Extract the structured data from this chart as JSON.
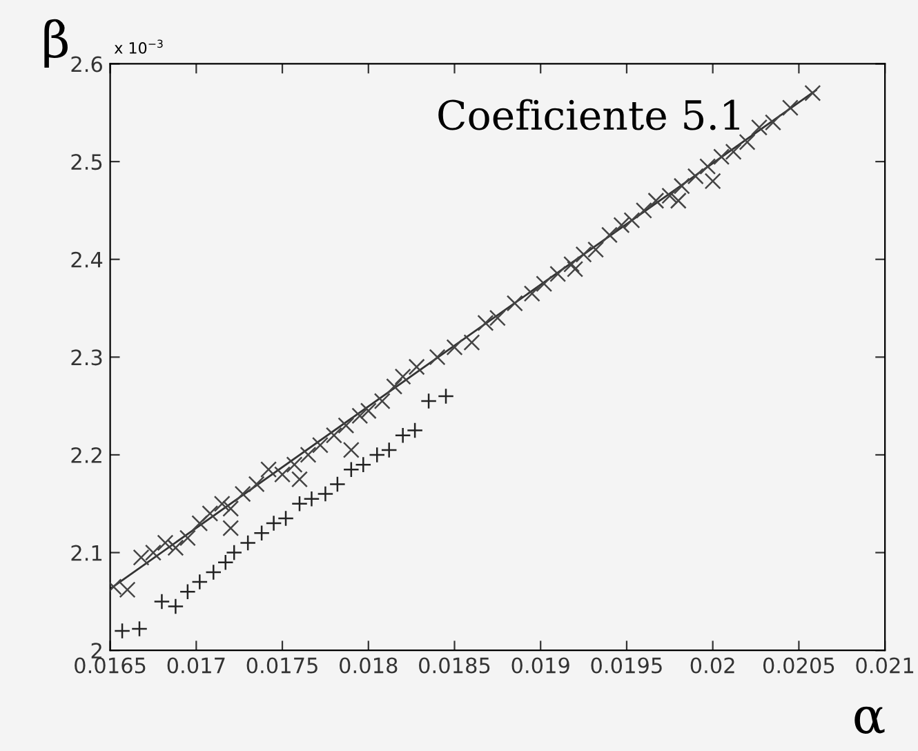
{
  "chart_data": {
    "type": "scatter",
    "xlabel": "α",
    "ylabel": "β",
    "annotations": [
      "Coeficiente 5.1",
      "x 10$^{−3}$"
    ],
    "xlim": [
      0.0165,
      0.021
    ],
    "xticks": [
      0.0165,
      0.017,
      0.0175,
      0.018,
      0.0185,
      0.019,
      0.0195,
      0.02,
      0.0205,
      0.021
    ],
    "ylim": [
      2,
      2.6
    ],
    "yticks": [
      2,
      2.1,
      2.2,
      2.3,
      2.4,
      2.5,
      2.6
    ],
    "grid": false,
    "series": [
      {
        "marker": "cross",
        "color": "#444444",
        "x": [
          0.01652,
          0.0166,
          0.01668,
          0.01675,
          0.01682,
          0.01688,
          0.01695,
          0.01702,
          0.01708,
          0.01715,
          0.0172,
          0.0172,
          0.01727,
          0.01735,
          0.01742,
          0.0175,
          0.01757,
          0.0176,
          0.01765,
          0.01772,
          0.0178,
          0.01787,
          0.0179,
          0.01795,
          0.018,
          0.01808,
          0.01815,
          0.0182,
          0.01828,
          0.0184,
          0.0185,
          0.0186,
          0.01868,
          0.01875,
          0.01885,
          0.01895,
          0.01902,
          0.0191,
          0.01918,
          0.0192,
          0.01925,
          0.01932,
          0.0194,
          0.01947,
          0.01953,
          0.0196,
          0.01967,
          0.01975,
          0.0198,
          0.01982,
          0.0199,
          0.01997,
          0.02,
          0.02005,
          0.02012,
          0.0202,
          0.02027,
          0.02035,
          0.02045,
          0.02058
        ],
        "values": [
          2.065,
          2.062,
          2.095,
          2.1,
          2.11,
          2.105,
          2.115,
          2.13,
          2.14,
          2.15,
          2.145,
          2.125,
          2.16,
          2.17,
          2.185,
          2.18,
          2.19,
          2.175,
          2.2,
          2.21,
          2.22,
          2.23,
          2.205,
          2.24,
          2.245,
          2.255,
          2.27,
          2.28,
          2.29,
          2.3,
          2.31,
          2.315,
          2.335,
          2.34,
          2.355,
          2.365,
          2.375,
          2.385,
          2.395,
          2.39,
          2.405,
          2.41,
          2.425,
          2.435,
          2.44,
          2.45,
          2.46,
          2.465,
          2.46,
          2.475,
          2.485,
          2.495,
          2.48,
          2.505,
          2.51,
          2.52,
          2.535,
          2.54,
          2.555,
          2.57
        ]
      },
      {
        "marker": "plus",
        "color": "#222222",
        "x": [
          0.01657,
          0.01667,
          0.0168,
          0.01688,
          0.01695,
          0.01702,
          0.0171,
          0.01717,
          0.01722,
          0.0173,
          0.01738,
          0.01745,
          0.01752,
          0.0176,
          0.01767,
          0.01775,
          0.01782,
          0.0179,
          0.01797,
          0.01805,
          0.01812,
          0.0182,
          0.01827,
          0.01835,
          0.01845
        ],
        "values": [
          2.02,
          2.022,
          2.05,
          2.045,
          2.06,
          2.07,
          2.08,
          2.09,
          2.1,
          2.11,
          2.12,
          2.13,
          2.135,
          2.15,
          2.155,
          2.16,
          2.17,
          2.185,
          2.19,
          2.2,
          2.205,
          2.22,
          2.225,
          2.255,
          2.26
        ]
      },
      {
        "type": "line",
        "marker": "none",
        "color": "#333333",
        "x": [
          0.0165,
          0.0206
        ],
        "values": [
          2.063,
          2.573
        ]
      }
    ]
  }
}
